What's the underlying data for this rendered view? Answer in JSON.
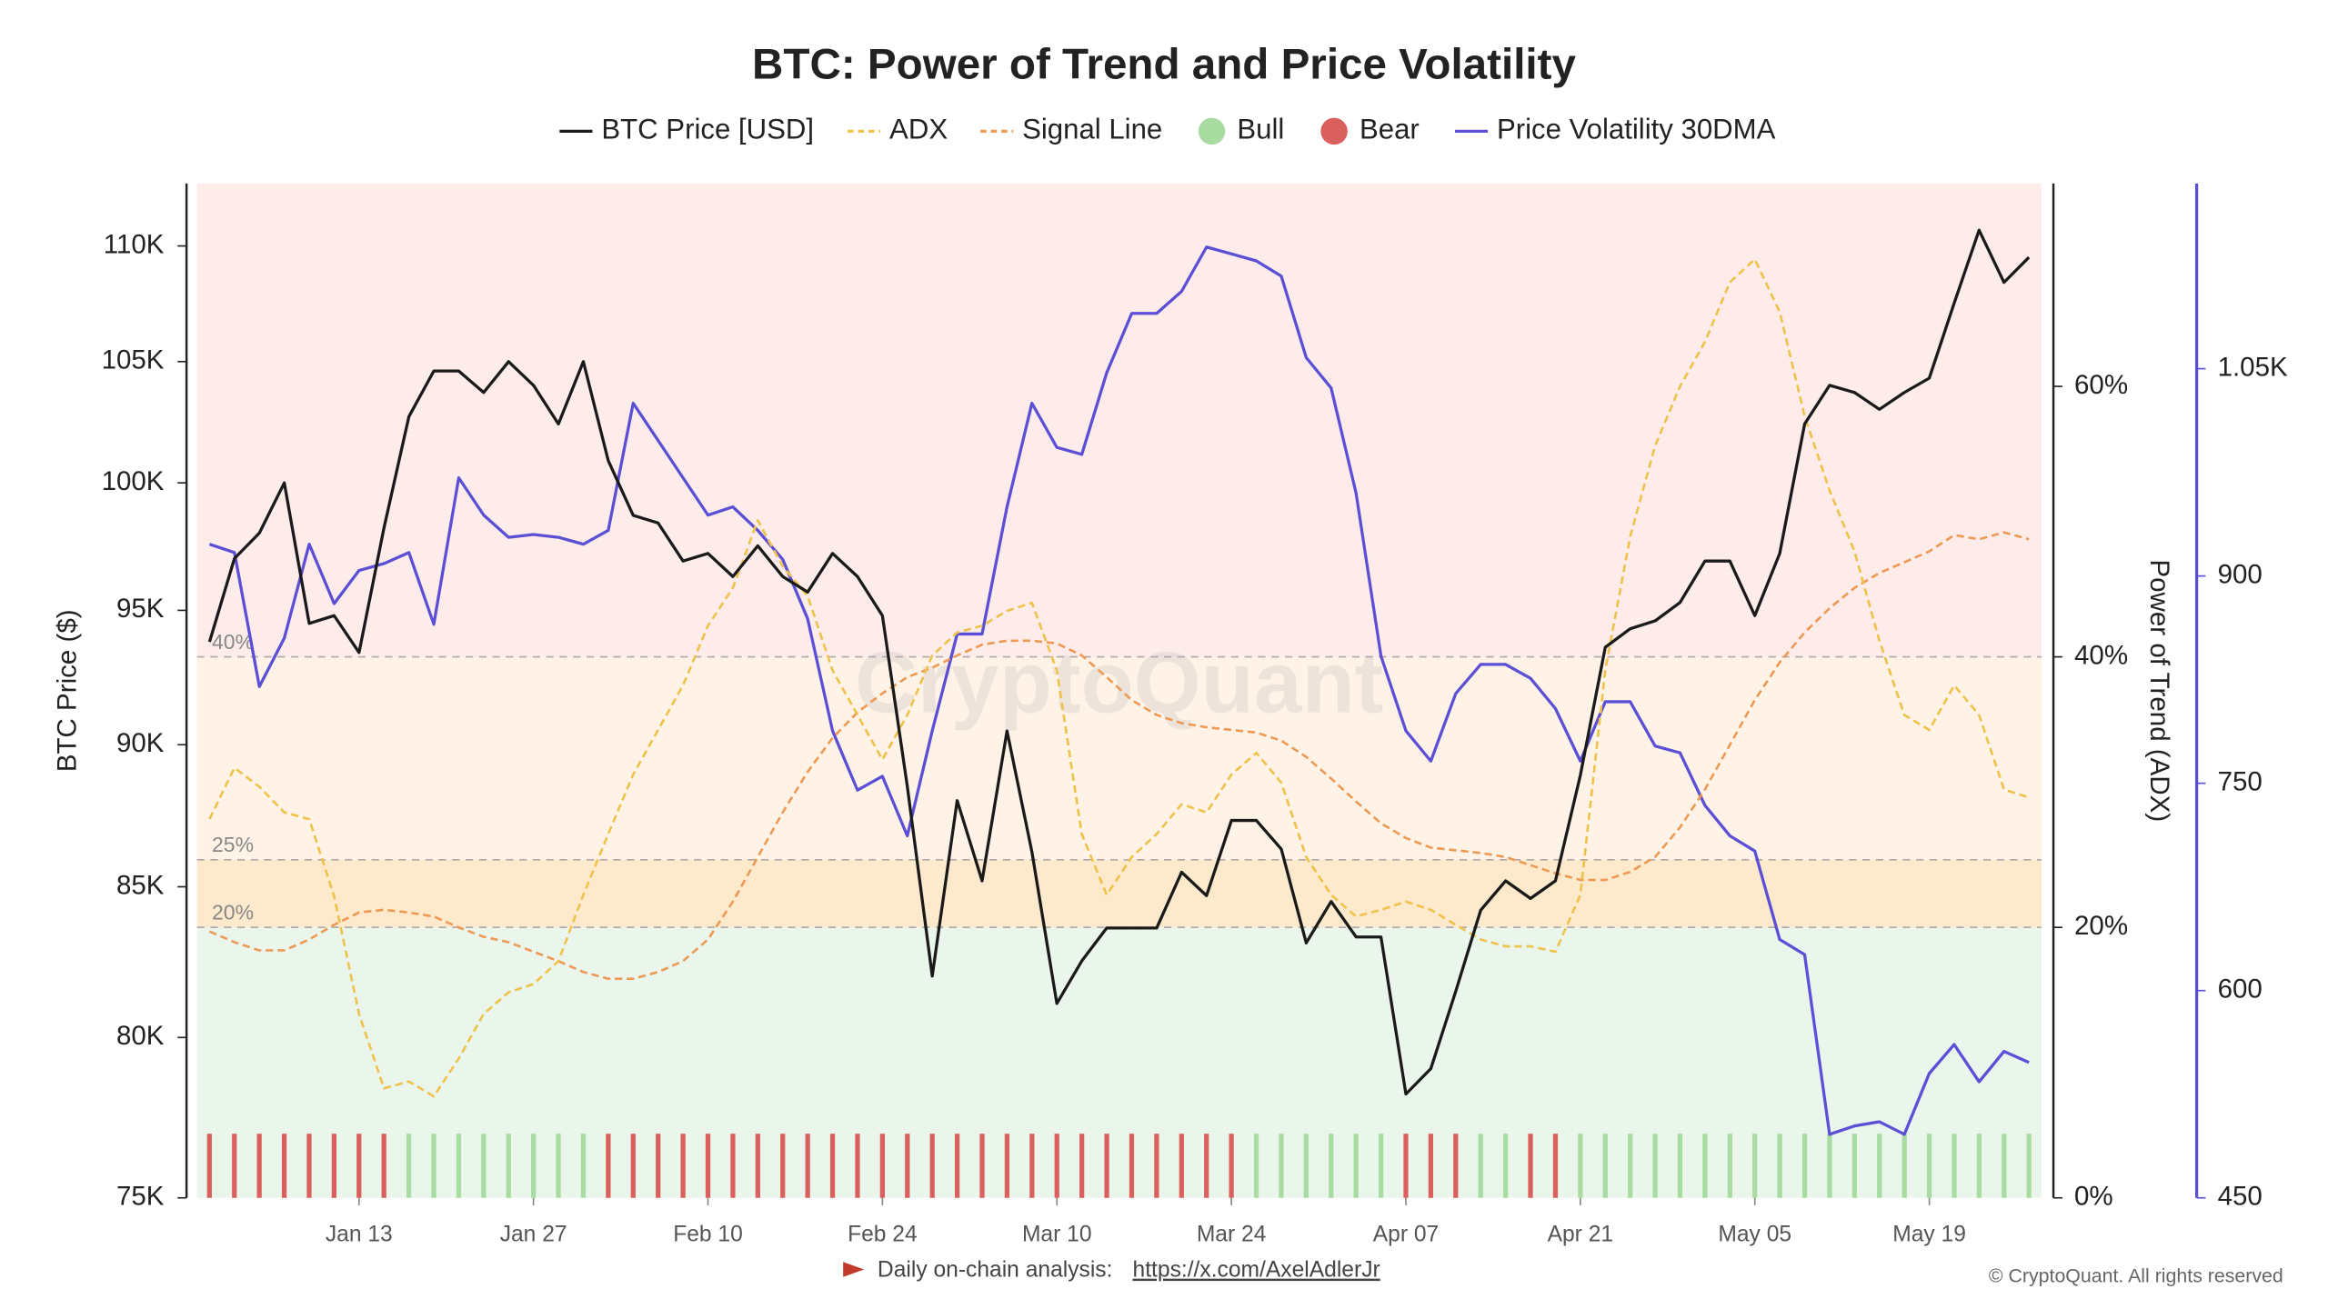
{
  "chart_data": {
    "type": "line",
    "title": "BTC: Power of Trend and Price Volatility",
    "ylabel": "BTC Price ($)",
    "y2label": "Power of Trend (ADX)",
    "watermark": "CryptoQuant",
    "footer": {
      "text": "Daily on-chain analysis:",
      "link": "https://x.com/AxelAdlerJr"
    },
    "copyright": "© CryptoQuant. All rights reserved",
    "categories": [
      null,
      null,
      null,
      null,
      null,
      null,
      "Jan 13",
      null,
      null,
      null,
      null,
      null,
      null,
      "Jan 27",
      null,
      null,
      null,
      null,
      null,
      null,
      "Feb 10",
      null,
      null,
      null,
      null,
      null,
      null,
      "Feb 24",
      null,
      null,
      null,
      null,
      null,
      null,
      "Mar 10",
      null,
      null,
      null,
      null,
      null,
      null,
      "Mar 24",
      null,
      null,
      null,
      null,
      null,
      null,
      "Apr 07",
      null,
      null,
      null,
      null,
      null,
      null,
      "Apr 21",
      null,
      null,
      null,
      null,
      null,
      null,
      "May 05",
      null,
      null,
      null,
      null,
      null,
      null,
      "May 19",
      null,
      null,
      null,
      null
    ],
    "ylog": true,
    "ylim": [
      75000,
      112800
    ],
    "yticks": [
      {
        "value": 75000,
        "label": "75K"
      },
      {
        "value": 80000,
        "label": "80K"
      },
      {
        "value": 85000,
        "label": "85K"
      },
      {
        "value": 90000,
        "label": "90K"
      },
      {
        "value": 95000,
        "label": "95K"
      },
      {
        "value": 100000,
        "label": "100K"
      },
      {
        "value": 105000,
        "label": "105K"
      },
      {
        "value": 110000,
        "label": "110K"
      }
    ],
    "y2lim": [
      0,
      75
    ],
    "y2ticks": [
      {
        "value": 0,
        "label": "0%"
      },
      {
        "value": 20,
        "label": "20%"
      },
      {
        "value": 40,
        "label": "40%"
      },
      {
        "value": 60,
        "label": "60%"
      }
    ],
    "y3lim": [
      450,
      1184
    ],
    "y3ticks": [
      450,
      600,
      750,
      900,
      {
        "value": 1050,
        "label": "1.05K"
      }
    ],
    "y3color": "#5b4fd6",
    "thresholds": [
      {
        "value": 40,
        "label": "40%"
      },
      {
        "value": 25,
        "label": "25%"
      },
      {
        "value": 20,
        "label": "20%"
      }
    ],
    "zone_colors": [
      "#fdecea",
      "#fef3e6",
      "#fde9cc",
      "#eaf5ec"
    ],
    "series": [
      {
        "name": "BTC Price [USD]",
        "color": "#1a1a1a",
        "axis": "y",
        "dash": false,
        "values": [
          93800,
          97000,
          98000,
          100000,
          94500,
          94800,
          93400,
          98200,
          102700,
          104600,
          104600,
          103700,
          105000,
          104000,
          102400,
          105000,
          100900,
          98700,
          98400,
          96900,
          97200,
          96300,
          97500,
          96300,
          95700,
          97200,
          96300,
          94800,
          88500,
          82000,
          88000,
          85200,
          90500,
          86200,
          81100,
          82500,
          83600,
          83600,
          83600,
          85500,
          84700,
          87300,
          87300,
          86300,
          83100,
          84500,
          83300,
          83300,
          78200,
          79000,
          81500,
          84200,
          85200,
          84600,
          85200,
          88900,
          93600,
          94300,
          94600,
          95300,
          96900,
          96900,
          94800,
          97200,
          102400,
          104000,
          103700,
          103000,
          103700,
          104300,
          107500,
          110700,
          108400,
          109500
        ]
      },
      {
        "name": "ADX",
        "color": "#f0c24a",
        "axis": "y2",
        "dash": true,
        "values": [
          28,
          31.8,
          30.4,
          28.5,
          28,
          22.3,
          13.6,
          8.1,
          8.6,
          7.5,
          10.3,
          13.6,
          15.2,
          15.8,
          17.5,
          22.4,
          26.9,
          31.3,
          34.6,
          37.9,
          42.3,
          45.1,
          50.1,
          46.7,
          44.5,
          39,
          35.7,
          32.4,
          35.7,
          40.1,
          41.8,
          42.3,
          43.4,
          44,
          39,
          26.9,
          22.4,
          25.2,
          26.9,
          29.1,
          28.5,
          31.3,
          32.9,
          30.7,
          25.2,
          22.4,
          20.8,
          21.3,
          21.9,
          21.3,
          20.2,
          19.1,
          18.6,
          18.6,
          18.2,
          22.4,
          39,
          48.9,
          55.6,
          60,
          63.3,
          67.7,
          69.4,
          65.5,
          57.8,
          52.3,
          47.8,
          41.2,
          35.7,
          34.6,
          37.9,
          35.7,
          30.2,
          29.6
        ]
      },
      {
        "name": "Signal Line",
        "color": "#ee9a55",
        "axis": "y2",
        "dash": true,
        "values": [
          19.7,
          18.9,
          18.3,
          18.3,
          19.1,
          20.2,
          21.1,
          21.3,
          21.1,
          20.8,
          20,
          19.3,
          18.9,
          18.2,
          17.5,
          16.7,
          16.2,
          16.2,
          16.7,
          17.5,
          19.1,
          21.9,
          25.2,
          28.5,
          31.5,
          34,
          35.9,
          37.3,
          38.5,
          39.2,
          40.1,
          40.9,
          41.2,
          41.2,
          41,
          40.1,
          38.5,
          36.8,
          35.7,
          35.1,
          34.8,
          34.6,
          34.4,
          33.8,
          32.6,
          31,
          29.3,
          27.7,
          26.6,
          25.9,
          25.7,
          25.5,
          25.2,
          24.6,
          24,
          23.5,
          23.5,
          24.1,
          25.2,
          27.4,
          30.2,
          33.5,
          36.8,
          39.6,
          41.8,
          43.6,
          45.1,
          46.2,
          47,
          47.8,
          49,
          48.7,
          49.2,
          48.7
        ]
      },
      {
        "name": "Price Volatility 30DMA",
        "color": "#5b4fd6",
        "axis": "y3",
        "dash": false,
        "values": [
          923,
          917,
          820,
          855,
          923,
          880,
          904,
          909,
          917,
          865,
          971,
          944,
          928,
          930,
          928,
          923,
          933,
          1025,
          998,
          971,
          944,
          950,
          933,
          912,
          869,
          788,
          745,
          755,
          712,
          788,
          858,
          858,
          950,
          1025,
          993,
          988,
          1047,
          1090,
          1090,
          1106,
          1138,
          1133,
          1128,
          1117,
          1058,
          1036,
          960,
          842,
          788,
          766,
          815,
          836,
          836,
          826,
          804,
          766,
          809,
          809,
          777,
          772,
          734,
          712,
          701,
          637,
          626,
          496,
          502,
          505,
          496,
          540,
          561,
          534,
          556,
          548
        ]
      }
    ],
    "regime_legend": [
      {
        "name": "Bull",
        "color": "#a8dca0"
      },
      {
        "name": "Bear",
        "color": "#d9605c"
      }
    ],
    "regime": [
      "Bear",
      "Bear",
      "Bear",
      "Bear",
      "Bear",
      "Bear",
      "Bear",
      "Bear",
      "Bull",
      "Bull",
      "Bull",
      "Bull",
      "Bull",
      "Bull",
      "Bull",
      "Bull",
      "Bear",
      "Bear",
      "Bear",
      "Bear",
      "Bear",
      "Bear",
      "Bear",
      "Bear",
      "Bear",
      "Bear",
      "Bear",
      "Bear",
      "Bear",
      "Bear",
      "Bear",
      "Bear",
      "Bear",
      "Bear",
      "Bear",
      "Bear",
      "Bear",
      "Bear",
      "Bear",
      "Bear",
      "Bear",
      "Bear",
      "Bull",
      "Bull",
      "Bull",
      "Bull",
      "Bull",
      "Bull",
      "Bear",
      "Bear",
      "Bear",
      "Bull",
      "Bull",
      "Bear",
      "Bear",
      "Bull",
      "Bull",
      "Bull",
      "Bull",
      "Bull",
      "Bull",
      "Bull",
      "Bull",
      "Bull",
      "Bull",
      "Bull",
      "Bull",
      "Bull",
      "Bull",
      "Bull",
      "Bull",
      "Bull",
      "Bull",
      "Bull"
    ]
  }
}
